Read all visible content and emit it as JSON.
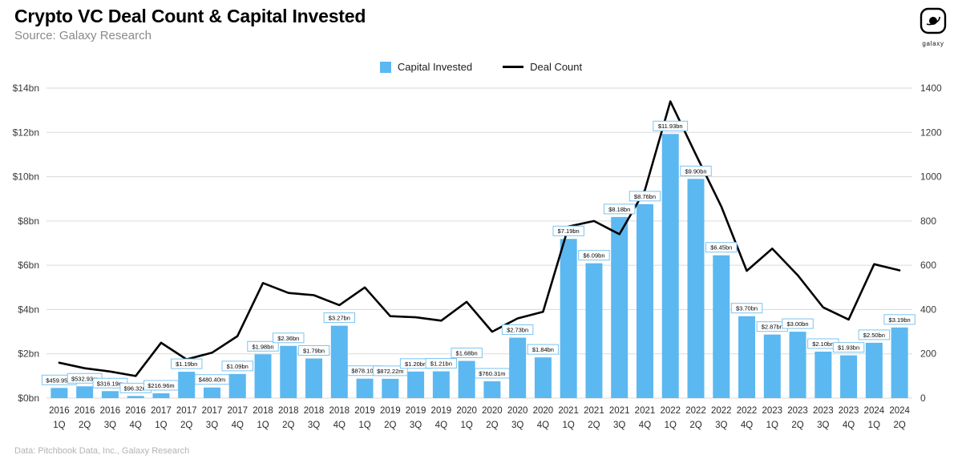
{
  "header": {
    "title": "Crypto VC Deal Count & Capital Invested",
    "subtitle": "Source: Galaxy Research",
    "logo_text": "galaxy"
  },
  "legend": {
    "capital_invested": "Capital Invested",
    "deal_count": "Deal Count"
  },
  "footer": {
    "attribution": "Data: Pitchbook Data, Inc., Galaxy Research"
  },
  "chart_data": {
    "type": "bar",
    "subtype": "bar+line combo, dual axis",
    "title": "Crypto VC Deal Count & Capital Invested",
    "categories": [
      "2016 1Q",
      "2016 2Q",
      "2016 3Q",
      "2016 4Q",
      "2017 1Q",
      "2017 2Q",
      "2017 3Q",
      "2017 4Q",
      "2018 1Q",
      "2018 2Q",
      "2018 3Q",
      "2018 4Q",
      "2019 1Q",
      "2019 2Q",
      "2019 3Q",
      "2019 4Q",
      "2020 1Q",
      "2020 2Q",
      "2020 3Q",
      "2020 4Q",
      "2021 1Q",
      "2021 2Q",
      "2021 3Q",
      "2021 4Q",
      "2022 1Q",
      "2022 2Q",
      "2022 3Q",
      "2022 4Q",
      "2023 1Q",
      "2023 2Q",
      "2023 3Q",
      "2023 4Q",
      "2024 1Q",
      "2024 2Q"
    ],
    "series": [
      {
        "name": "Capital Invested",
        "type": "bar",
        "axis": "left",
        "unit": "USD bn",
        "values": [
          0.46,
          0.533,
          0.316,
          0.096,
          0.217,
          1.19,
          0.48,
          1.09,
          1.98,
          2.36,
          1.79,
          3.27,
          0.878,
          0.872,
          1.2,
          1.21,
          1.68,
          0.76,
          2.73,
          1.84,
          7.19,
          6.09,
          8.18,
          8.76,
          11.93,
          9.9,
          6.45,
          3.7,
          2.87,
          3.0,
          2.1,
          1.93,
          2.5,
          3.19
        ],
        "labels": [
          "$459.95m",
          "$532.93m",
          "$316.19m",
          "$96.32m",
          "$216.96m",
          "$1.19bn",
          "$480.40m",
          "$1.09bn",
          "$1.98bn",
          "$2.36bn",
          "$1.79bn",
          "$3.27bn",
          "$878.10m",
          "$872.22m",
          "$1.20bn",
          "$1.21bn",
          "$1.68bn",
          "$760.31m",
          "$2.73bn",
          "$1.84bn",
          "$7.19bn",
          "$6.09bn",
          "$8.18bn",
          "$8.76bn",
          "$11.93bn",
          "$9.90bn",
          "$6.45bn",
          "$3.70bn",
          "$2.87bn",
          "$3.00bn",
          "$2.10bn",
          "$1.93bn",
          "$2.50bn",
          "$3.19bn"
        ]
      },
      {
        "name": "Deal Count",
        "type": "line",
        "axis": "right",
        "unit": "deals",
        "values": [
          160,
          135,
          120,
          100,
          250,
          175,
          205,
          280,
          520,
          475,
          465,
          420,
          500,
          370,
          365,
          350,
          435,
          300,
          360,
          390,
          775,
          800,
          740,
          940,
          1340,
          1100,
          865,
          575,
          675,
          555,
          410,
          355,
          605,
          577
        ]
      }
    ],
    "left_axis": {
      "min": 0,
      "max": 14,
      "step": 2,
      "ticks": [
        "$0bn",
        "$2bn",
        "$4bn",
        "$6bn",
        "$8bn",
        "$10bn",
        "$12bn",
        "$14bn"
      ]
    },
    "right_axis": {
      "min": 0,
      "max": 1400,
      "step": 200,
      "ticks": [
        "0",
        "200",
        "400",
        "600",
        "800",
        "1000",
        "1200",
        "1400"
      ]
    },
    "grid": "horizontal",
    "legend_position": "top-center",
    "colors": {
      "bar": "#5CB8F0",
      "line": "#000000",
      "gridline": "#dadada",
      "label_box_border": "#7cc3ef"
    }
  }
}
